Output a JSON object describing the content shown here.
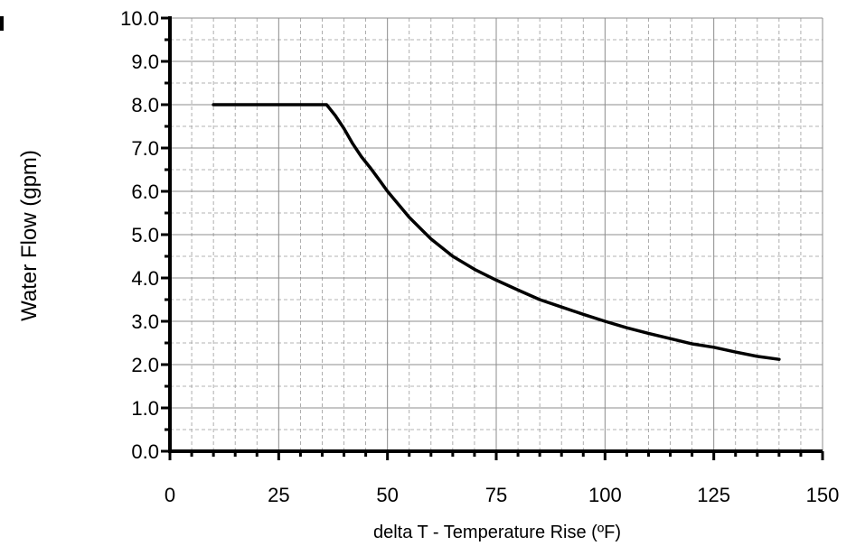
{
  "chart_data": {
    "type": "line",
    "title": "",
    "xlabel": "delta T - Temperature Rise (ºF)",
    "ylabel": "Water Flow (gpm)",
    "xlim": [
      0,
      150
    ],
    "ylim": [
      0,
      10
    ],
    "x_major_ticks": [
      0,
      25,
      50,
      75,
      100,
      125,
      150
    ],
    "x_tick_labels": [
      "0",
      "25",
      "50",
      "75",
      "100",
      "125",
      "150"
    ],
    "y_major_ticks": [
      0,
      1,
      2,
      3,
      4,
      5,
      6,
      7,
      8,
      9,
      10
    ],
    "y_tick_labels": [
      "0.0",
      "1.0",
      "2.0",
      "3.0",
      "4.0",
      "5.0",
      "6.0",
      "7.0",
      "8.0",
      "9.0",
      "10.0"
    ],
    "x_minor_step": 5,
    "y_minor_step": 0.5,
    "grid": true,
    "line_color": "#000000",
    "grid_major_color": "#8c8c8c",
    "grid_minor_color": "#9a9a9a",
    "series": [
      {
        "x": [
          10,
          15,
          20,
          25,
          30,
          35,
          36,
          38,
          40,
          42,
          44,
          46,
          48,
          50,
          55,
          60,
          65,
          70,
          75,
          80,
          85,
          90,
          95,
          100,
          105,
          110,
          115,
          120,
          125,
          130,
          135,
          140
        ],
        "y": [
          8.0,
          8.0,
          8.0,
          8.0,
          8.0,
          8.0,
          8.0,
          7.75,
          7.45,
          7.1,
          6.8,
          6.55,
          6.28,
          6.0,
          5.4,
          4.9,
          4.5,
          4.2,
          3.95,
          3.72,
          3.5,
          3.33,
          3.16,
          3.0,
          2.85,
          2.72,
          2.6,
          2.48,
          2.4,
          2.29,
          2.19,
          2.12
        ]
      }
    ]
  }
}
